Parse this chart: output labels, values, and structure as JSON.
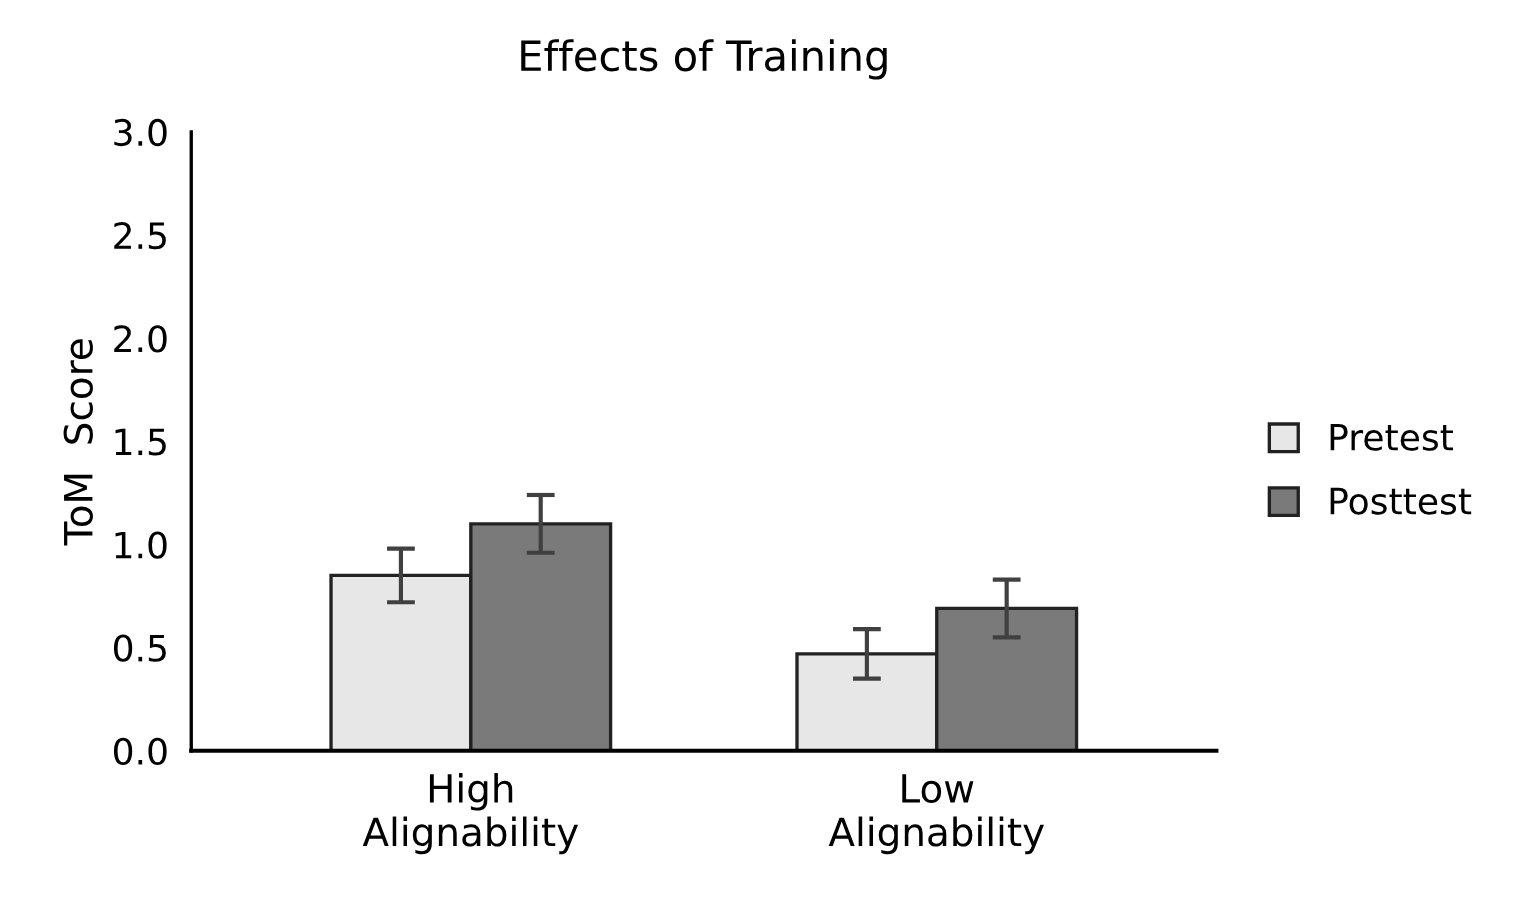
{
  "chart_data": {
    "type": "bar",
    "title": "Effects of Training",
    "ylabel": "ToM  Score",
    "categories": [
      "High\nAlignability",
      "Low\nAlignability"
    ],
    "series": [
      {
        "name": "Pretest",
        "color": "#e7e7e7",
        "values": [
          0.85,
          0.47
        ],
        "errors": [
          0.13,
          0.12
        ]
      },
      {
        "name": "Posttest",
        "color": "#7a7a7a",
        "values": [
          1.1,
          0.69
        ],
        "errors": [
          0.14,
          0.14
        ]
      }
    ],
    "ylim": [
      0,
      3.0
    ],
    "yticks": [
      {
        "value": 0,
        "label": "0.0"
      },
      0.5,
      {
        "value": 1,
        "label": "1.0"
      },
      1.5,
      {
        "value": 2,
        "label": "2.0"
      },
      2.5,
      {
        "value": 3,
        "label": "3.0"
      }
    ],
    "grid": false,
    "legend": "right"
  }
}
